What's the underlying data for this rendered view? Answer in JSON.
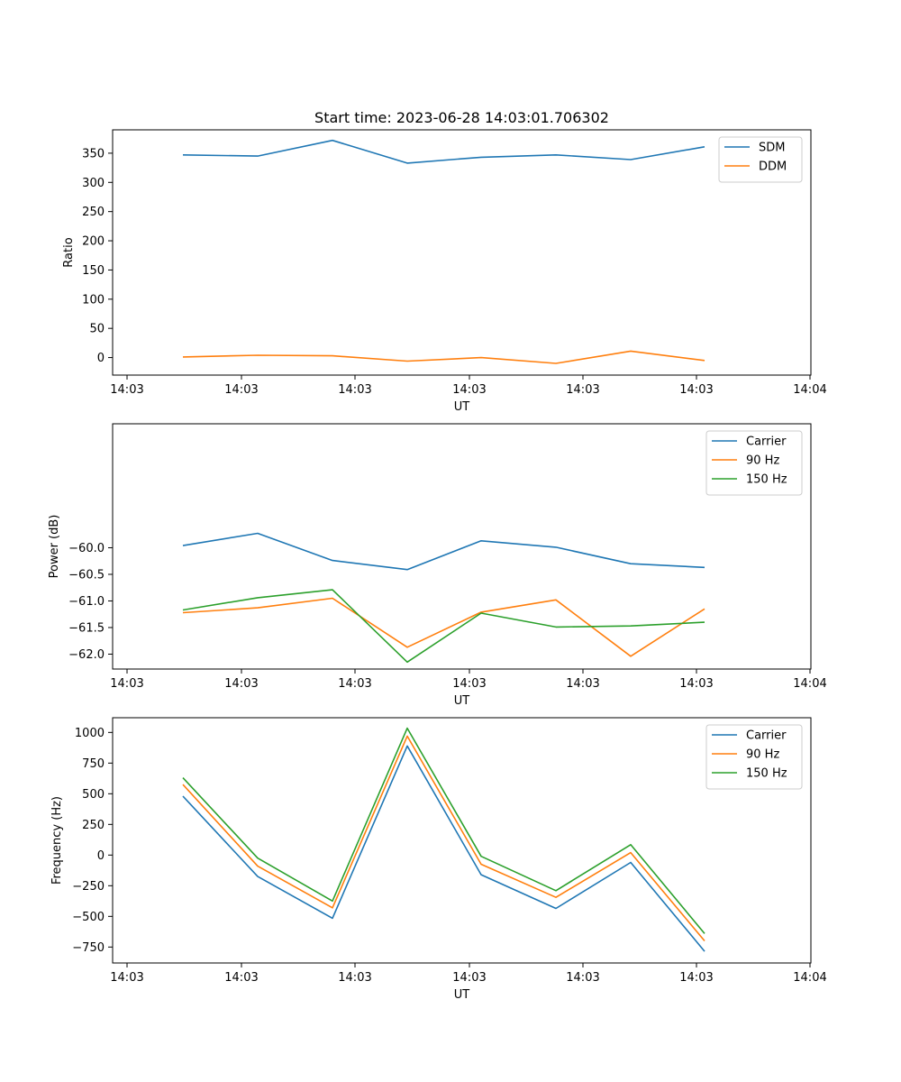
{
  "figure_title": "Start time: 2023-06-28 14:03:01.706302",
  "colors": {
    "blue": "#1f77b4",
    "orange": "#ff7f0e",
    "green": "#2ca02c"
  },
  "chart_data": [
    {
      "type": "line",
      "xlabel": "UT",
      "ylabel": "Ratio",
      "x_tick_labels": [
        "14:03",
        "14:03",
        "14:03",
        "14:03",
        "14:03",
        "14:03",
        "14:04"
      ],
      "ylim": [
        -30,
        390
      ],
      "yticks": [
        0,
        50,
        100,
        150,
        200,
        250,
        300,
        350
      ],
      "legend_position": "top-right",
      "series": [
        {
          "name": "SDM",
          "color": "#1f77b4",
          "values": [
            347,
            345,
            372,
            333,
            343,
            347,
            339,
            361
          ]
        },
        {
          "name": "DDM",
          "color": "#ff7f0e",
          "values": [
            1,
            4,
            3,
            -6,
            0,
            -10,
            11,
            -5
          ]
        }
      ]
    },
    {
      "type": "line",
      "xlabel": "UT",
      "ylabel": "Power (dB)",
      "x_tick_labels": [
        "14:03",
        "14:03",
        "14:03",
        "14:03",
        "14:03",
        "14:03",
        "14:04"
      ],
      "ylim": [
        -62.28,
        -57.67
      ],
      "yticks": [
        -62.0,
        -61.5,
        -61.0,
        -60.5,
        -60.0
      ],
      "ytick_labels": [
        "−62.0",
        "−61.5",
        "−61.0",
        "−60.5",
        "−60.0"
      ],
      "legend_position": "top-right",
      "series": [
        {
          "name": "Carrier",
          "color": "#1f77b4",
          "values": [
            -59.96,
            -59.73,
            -60.24,
            -60.41,
            -59.87,
            -59.99,
            -60.3,
            -60.37
          ]
        },
        {
          "name": "90 Hz",
          "color": "#ff7f0e",
          "values": [
            -61.22,
            -61.13,
            -60.95,
            -61.87,
            -61.21,
            -60.98,
            -62.04,
            -61.15
          ]
        },
        {
          "name": "150 Hz",
          "color": "#2ca02c",
          "values": [
            -61.17,
            -60.94,
            -60.79,
            -62.15,
            -61.23,
            -61.49,
            -61.47,
            -61.4
          ]
        }
      ]
    },
    {
      "type": "line",
      "xlabel": "UT",
      "ylabel": "Frequency (Hz)",
      "x_tick_labels": [
        "14:03",
        "14:03",
        "14:03",
        "14:03",
        "14:03",
        "14:03",
        "14:04"
      ],
      "ylim": [
        -880,
        1120
      ],
      "yticks": [
        -750,
        -500,
        -250,
        0,
        250,
        500,
        750,
        1000
      ],
      "ytick_labels": [
        "−750",
        "−500",
        "−250",
        "0",
        "250",
        "500",
        "750",
        "1000"
      ],
      "legend_position": "top-right",
      "series": [
        {
          "name": "Carrier",
          "color": "#1f77b4",
          "values": [
            480,
            -175,
            -515,
            890,
            -160,
            -435,
            -60,
            -785
          ]
        },
        {
          "name": "90 Hz",
          "color": "#ff7f0e",
          "values": [
            575,
            -90,
            -430,
            970,
            -75,
            -345,
            20,
            -700
          ]
        },
        {
          "name": "150 Hz",
          "color": "#2ca02c",
          "values": [
            630,
            -25,
            -375,
            1035,
            -10,
            -290,
            85,
            -640
          ]
        }
      ]
    }
  ]
}
